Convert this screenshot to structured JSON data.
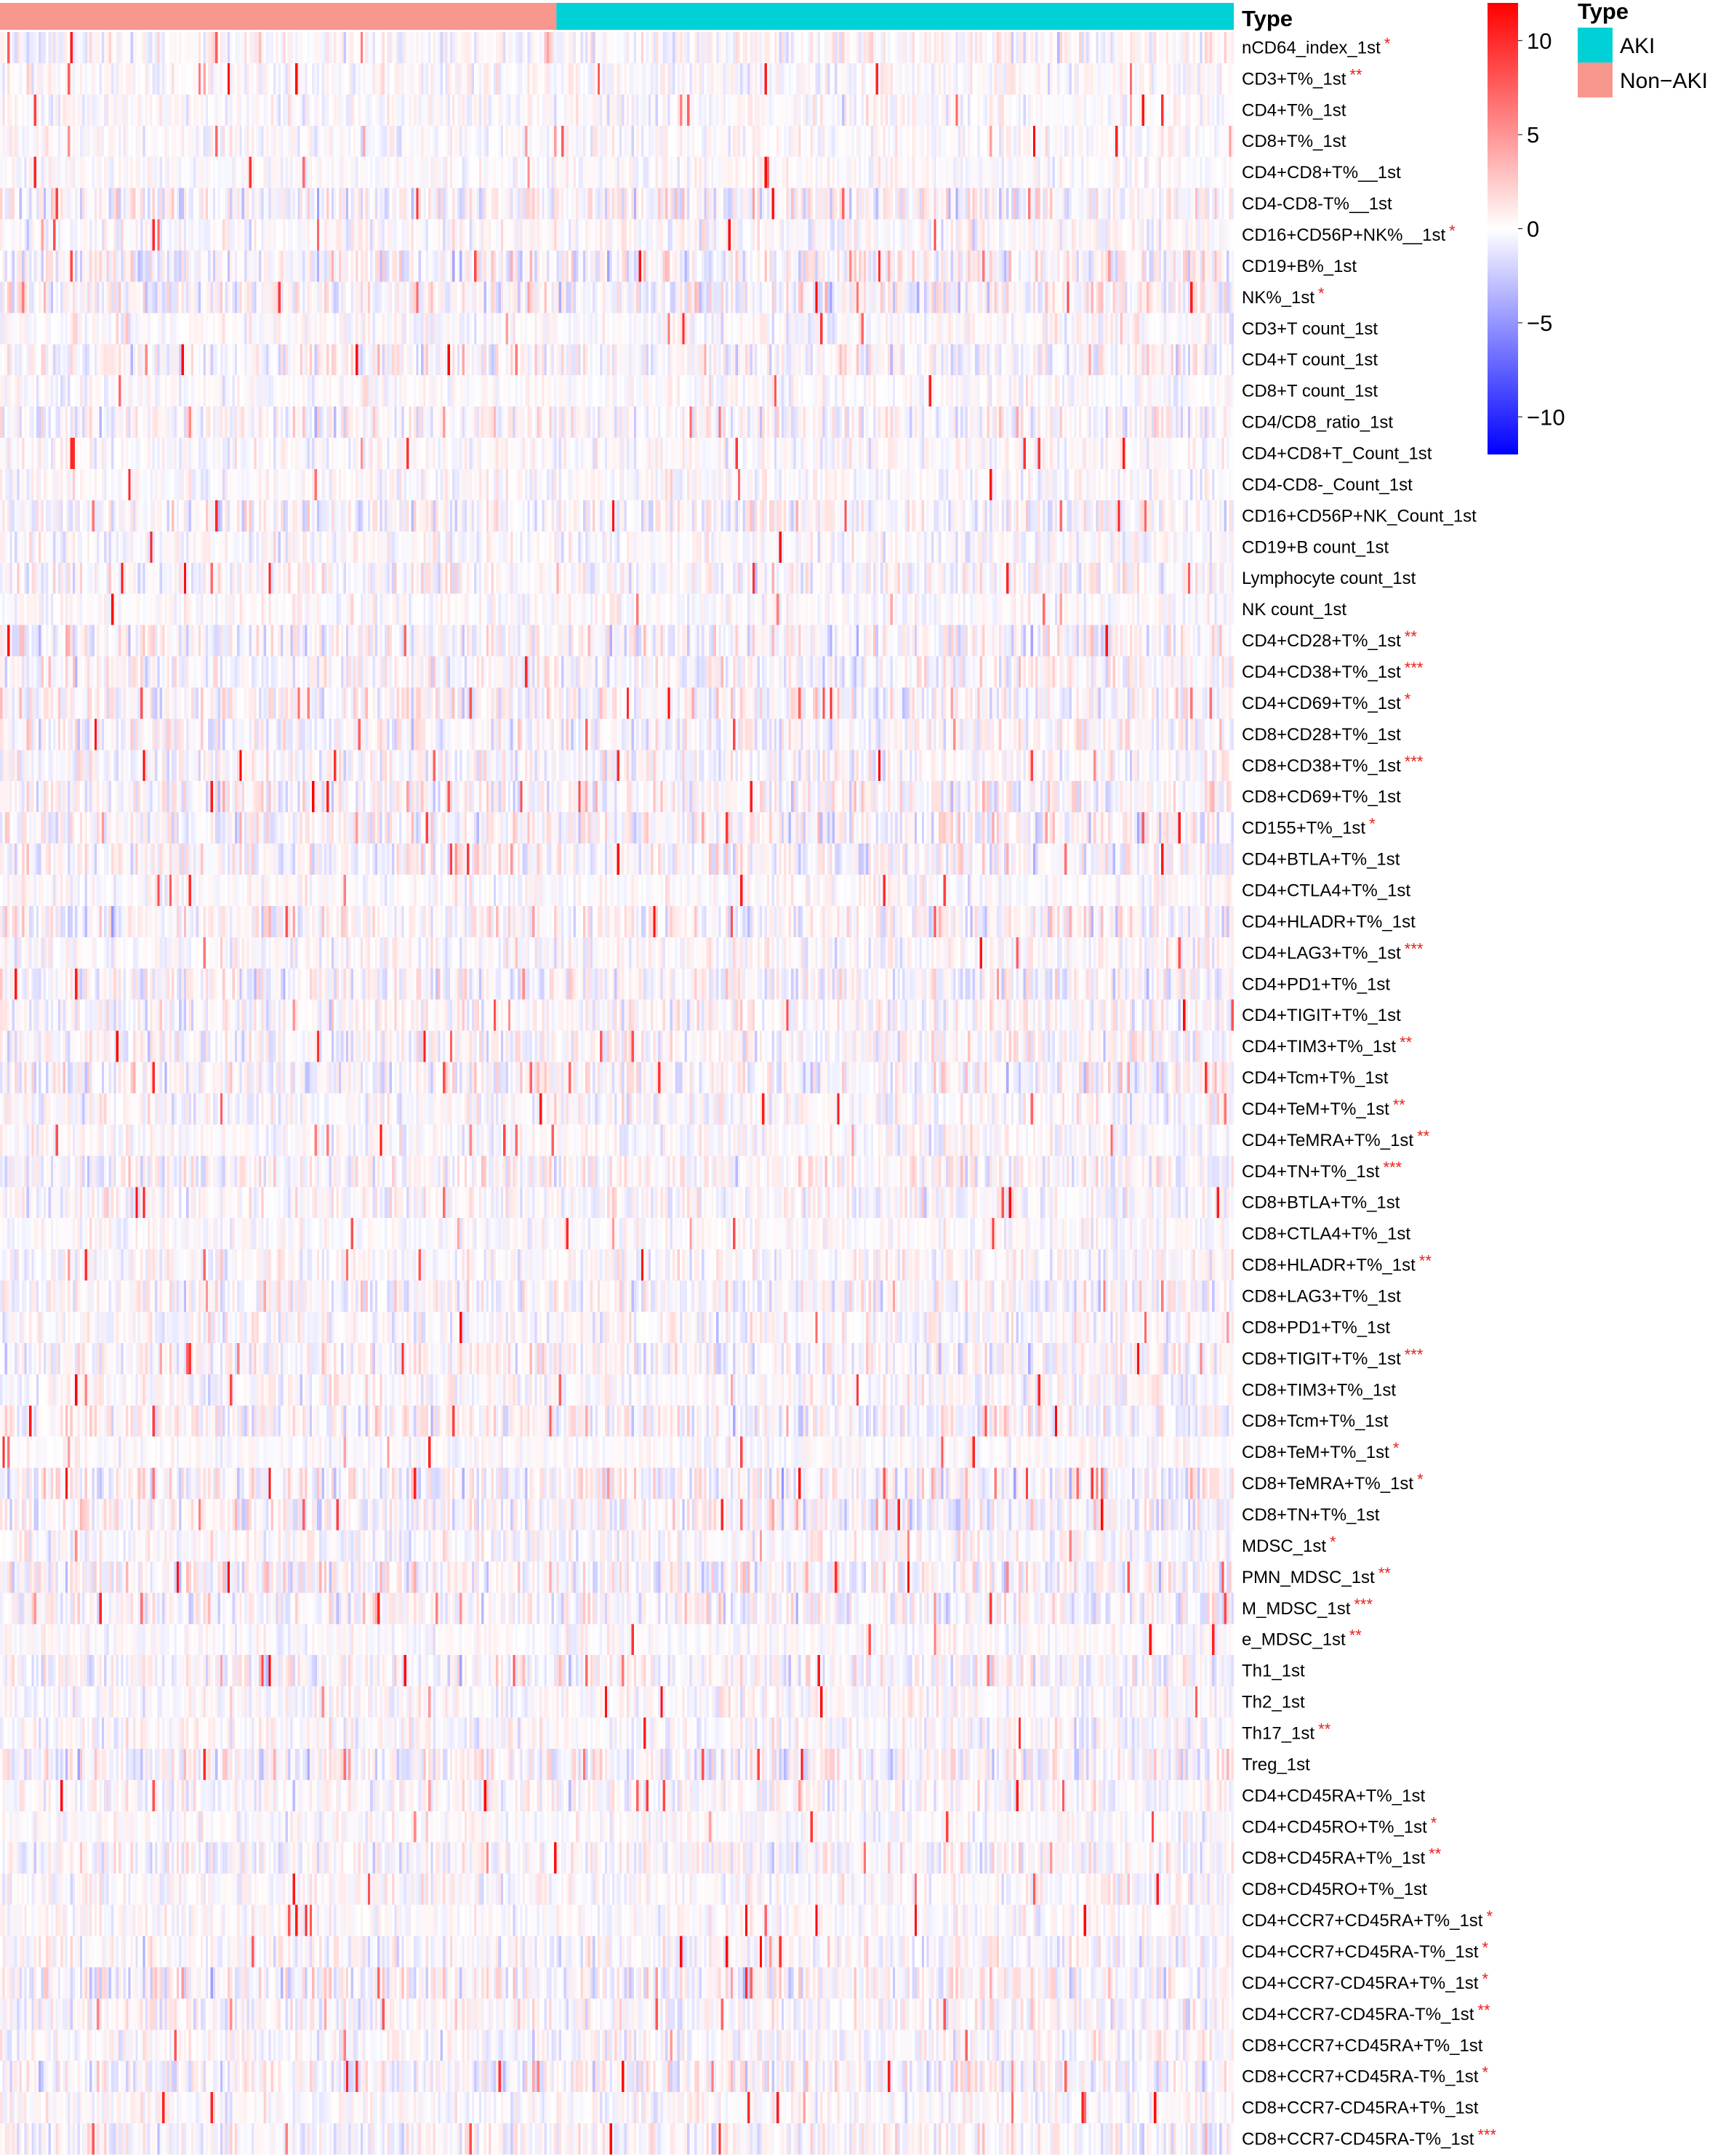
{
  "chart_data": {
    "type": "heatmap",
    "annotation": {
      "title": "Type",
      "groups": [
        {
          "name": "Non−AKI",
          "color": "#F8978E",
          "samples": 230
        },
        {
          "name": "AKI",
          "color": "#00D1D6",
          "samples": 280
        }
      ]
    },
    "legend": {
      "title": "Type",
      "items": [
        {
          "label": "AKI",
          "color": "#00D1D6"
        },
        {
          "label": "Non−AKI",
          "color": "#F8978E"
        }
      ],
      "placement": "top-right"
    },
    "color_scale": {
      "range": [
        -12,
        12
      ],
      "ticks": [
        "10",
        "5",
        "0",
        "−5",
        "−10"
      ],
      "tick_values": [
        10,
        5,
        0,
        -5,
        -10
      ],
      "low_color": "#0000FF",
      "mid_color": "#FFFFFF",
      "high_color": "#FF0000"
    },
    "rows": [
      {
        "label": "nCD64_index_1st",
        "sig": "*"
      },
      {
        "label": "CD3+T%_1st",
        "sig": "**"
      },
      {
        "label": "CD4+T%_1st",
        "sig": ""
      },
      {
        "label": "CD8+T%_1st",
        "sig": ""
      },
      {
        "label": "CD4+CD8+T%__1st",
        "sig": ""
      },
      {
        "label": "CD4-CD8-T%__1st",
        "sig": ""
      },
      {
        "label": "CD16+CD56P+NK%__1st",
        "sig": "*"
      },
      {
        "label": "CD19+B%_1st",
        "sig": ""
      },
      {
        "label": "NK%_1st",
        "sig": "*"
      },
      {
        "label": "CD3+T count_1st",
        "sig": ""
      },
      {
        "label": "CD4+T count_1st",
        "sig": ""
      },
      {
        "label": "CD8+T count_1st",
        "sig": ""
      },
      {
        "label": "CD4/CD8_ratio_1st",
        "sig": ""
      },
      {
        "label": "CD4+CD8+T_Count_1st",
        "sig": ""
      },
      {
        "label": "CD4-CD8-_Count_1st",
        "sig": ""
      },
      {
        "label": "CD16+CD56P+NK_Count_1st",
        "sig": ""
      },
      {
        "label": "CD19+B count_1st",
        "sig": ""
      },
      {
        "label": "Lymphocyte count_1st",
        "sig": ""
      },
      {
        "label": "NK count_1st",
        "sig": ""
      },
      {
        "label": "CD4+CD28+T%_1st",
        "sig": "**"
      },
      {
        "label": "CD4+CD38+T%_1st",
        "sig": "***"
      },
      {
        "label": "CD4+CD69+T%_1st",
        "sig": "*"
      },
      {
        "label": "CD8+CD28+T%_1st",
        "sig": ""
      },
      {
        "label": "CD8+CD38+T%_1st",
        "sig": "***"
      },
      {
        "label": "CD8+CD69+T%_1st",
        "sig": ""
      },
      {
        "label": "CD155+T%_1st",
        "sig": "*"
      },
      {
        "label": "CD4+BTLA+T%_1st",
        "sig": ""
      },
      {
        "label": "CD4+CTLA4+T%_1st",
        "sig": ""
      },
      {
        "label": "CD4+HLADR+T%_1st",
        "sig": ""
      },
      {
        "label": "CD4+LAG3+T%_1st",
        "sig": "***"
      },
      {
        "label": "CD4+PD1+T%_1st",
        "sig": ""
      },
      {
        "label": "CD4+TIGIT+T%_1st",
        "sig": ""
      },
      {
        "label": "CD4+TIM3+T%_1st",
        "sig": "**"
      },
      {
        "label": "CD4+Tcm+T%_1st",
        "sig": ""
      },
      {
        "label": "CD4+TeM+T%_1st",
        "sig": "**"
      },
      {
        "label": "CD4+TeMRA+T%_1st",
        "sig": "**"
      },
      {
        "label": "CD4+TN+T%_1st",
        "sig": "***"
      },
      {
        "label": "CD8+BTLA+T%_1st",
        "sig": ""
      },
      {
        "label": "CD8+CTLA4+T%_1st",
        "sig": ""
      },
      {
        "label": "CD8+HLADR+T%_1st",
        "sig": "**"
      },
      {
        "label": "CD8+LAG3+T%_1st",
        "sig": ""
      },
      {
        "label": "CD8+PD1+T%_1st",
        "sig": ""
      },
      {
        "label": "CD8+TIGIT+T%_1st",
        "sig": "***"
      },
      {
        "label": "CD8+TIM3+T%_1st",
        "sig": ""
      },
      {
        "label": "CD8+Tcm+T%_1st",
        "sig": ""
      },
      {
        "label": "CD8+TeM+T%_1st",
        "sig": "*"
      },
      {
        "label": "CD8+TeMRA+T%_1st",
        "sig": "*"
      },
      {
        "label": "CD8+TN+T%_1st",
        "sig": ""
      },
      {
        "label": "MDSC_1st",
        "sig": "*"
      },
      {
        "label": "PMN_MDSC_1st",
        "sig": "**"
      },
      {
        "label": "M_MDSC_1st",
        "sig": "***"
      },
      {
        "label": "e_MDSC_1st",
        "sig": "**"
      },
      {
        "label": "Th1_1st",
        "sig": ""
      },
      {
        "label": "Th2_1st",
        "sig": ""
      },
      {
        "label": "Th17_1st",
        "sig": "**"
      },
      {
        "label": "Treg_1st",
        "sig": ""
      },
      {
        "label": "CD4+CD45RA+T%_1st",
        "sig": ""
      },
      {
        "label": "CD4+CD45RO+T%_1st",
        "sig": "*"
      },
      {
        "label": "CD8+CD45RA+T%_1st",
        "sig": "**"
      },
      {
        "label": "CD8+CD45RO+T%_1st",
        "sig": ""
      },
      {
        "label": "CD4+CCR7+CD45RA+T%_1st",
        "sig": "*"
      },
      {
        "label": "CD4+CCR7+CD45RA-T%_1st",
        "sig": "*"
      },
      {
        "label": "CD4+CCR7-CD45RA+T%_1st",
        "sig": "*"
      },
      {
        "label": "CD4+CCR7-CD45RA-T%_1st",
        "sig": "**"
      },
      {
        "label": "CD8+CCR7+CD45RA+T%_1st",
        "sig": ""
      },
      {
        "label": "CD8+CCR7+CD45RA-T%_1st",
        "sig": "*"
      },
      {
        "label": "CD8+CCR7-CD45RA+T%_1st",
        "sig": ""
      },
      {
        "label": "CD8+CCR7-CD45RA-T%_1st",
        "sig": "***"
      }
    ]
  }
}
